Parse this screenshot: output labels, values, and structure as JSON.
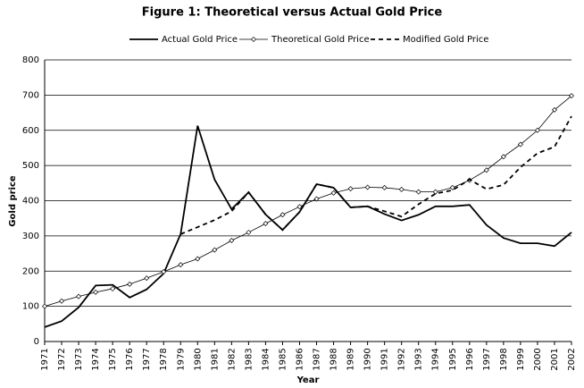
{
  "chart_data": {
    "type": "line",
    "title": "Figure 1: Theoretical versus Actual Gold Price",
    "x_label": "Year",
    "y_label": "Gold price",
    "categories": [
      1971,
      1972,
      1973,
      1974,
      1975,
      1976,
      1977,
      1978,
      1979,
      1980,
      1981,
      1982,
      1983,
      1984,
      1985,
      1986,
      1987,
      1988,
      1989,
      1990,
      1991,
      1992,
      1993,
      1994,
      1995,
      1996,
      1997,
      1998,
      1999,
      2000,
      2001,
      2002
    ],
    "ylim": [
      0,
      800
    ],
    "yticks": [
      0,
      100,
      200,
      300,
      400,
      500,
      600,
      700,
      800
    ],
    "grid": true,
    "series": [
      {
        "name": "Actual Gold Price",
        "color": "#000000",
        "style": "solid",
        "values": [
          41,
          58,
          97,
          159,
          161,
          125,
          148,
          193,
          305,
          613,
          460,
          376,
          424,
          361,
          317,
          368,
          447,
          437,
          381,
          384,
          362,
          344,
          360,
          384,
          384,
          388,
          331,
          294,
          279,
          279,
          271,
          310
        ]
      },
      {
        "name": "Theoretical Gold Price",
        "color": "#000000",
        "style": "marker",
        "values": [
          100,
          115,
          128,
          140,
          150,
          163,
          180,
          198,
          218,
          235,
          260,
          287,
          310,
          335,
          360,
          383,
          405,
          422,
          434,
          438,
          437,
          432,
          425,
          425,
          437,
          458,
          487,
          525,
          560,
          600,
          658,
          698
        ]
      },
      {
        "name": "Modified Gold Price",
        "color": "#000000",
        "style": "dashed",
        "values": [
          null,
          null,
          null,
          null,
          null,
          null,
          null,
          null,
          305,
          325,
          345,
          370,
          424,
          361,
          317,
          368,
          447,
          437,
          381,
          384,
          370,
          355,
          390,
          420,
          430,
          460,
          433,
          445,
          495,
          535,
          553,
          640
        ]
      }
    ]
  }
}
